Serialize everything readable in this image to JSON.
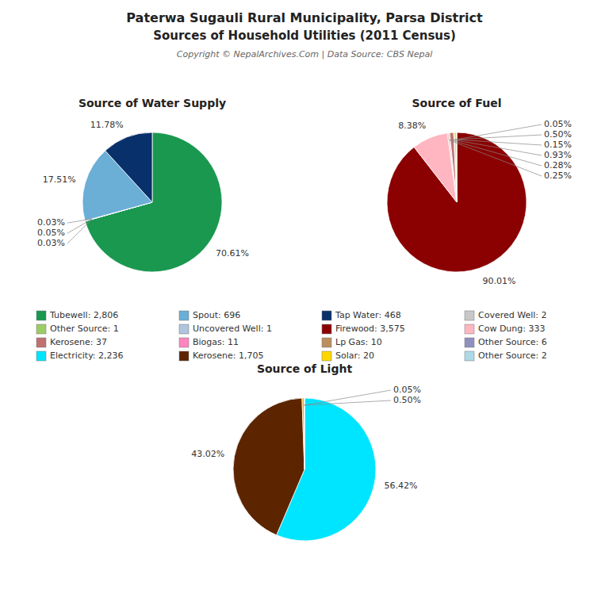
{
  "chart_data": {
    "title": "Paterwa Sugauli Rural Municipality, Parsa District",
    "subtitle": "Sources of Household Utilities (2011 Census)",
    "annotations": [
      "Copyright © NepalArchives.Com | Data Source: CBS Nepal"
    ],
    "charts": [
      {
        "type": "pie",
        "title": "Source of Water Supply",
        "values": [
          70.61,
          0.03,
          0.05,
          0.03,
          17.51,
          11.78
        ],
        "value_labels": [
          "70.61%",
          "0.03%",
          "0.05%",
          "0.03%",
          "17.51%",
          "11.78%"
        ],
        "colors": [
          "#1a9850",
          "#9ccc65",
          "#c8c8c8",
          "#b0c4de",
          "#6baed6",
          "#08306b"
        ],
        "data_labels": true
      },
      {
        "type": "pie",
        "title": "Source of Fuel",
        "values": [
          90.01,
          8.38,
          0.25,
          0.28,
          0.93,
          0.15,
          0.5,
          0.05
        ],
        "value_labels": [
          "90.01%",
          "8.38%",
          "0.25%",
          "0.28%",
          "0.93%",
          "0.15%",
          "0.50%",
          "0.05%"
        ],
        "colors": [
          "#8b0000",
          "#ffb6c1",
          "#bc8f5f",
          "#ff85c0",
          "#c07070",
          "#9090c0",
          "#ffd700",
          "#add8e6"
        ],
        "data_labels": true
      },
      {
        "type": "pie",
        "title": "Source of Light",
        "values": [
          56.42,
          43.02,
          0.5,
          0.05
        ],
        "value_labels": [
          "56.42%",
          "43.02%",
          "0.50%",
          "0.05%"
        ],
        "colors": [
          "#00e5ff",
          "#5c2500",
          "#ffa500",
          "#ffd700"
        ],
        "data_labels": true
      }
    ],
    "legend_entries": {
      "categories": [
        "Tubewell: 2,806",
        "Other Source: 1",
        "Kerosene: 37",
        "Electricity: 2,236",
        "Spout: 696",
        "Uncovered Well: 1",
        "Biogas: 11",
        "Kerosene: 1,705",
        "Tap Water: 468",
        "Firewood: 3,575",
        "Lp Gas: 10",
        "Solar: 20",
        "Covered Well: 2",
        "Cow Dung: 333",
        "Other Source: 6",
        "Other Source: 2"
      ],
      "colors": [
        "#1a9850",
        "#9ccc65",
        "#c07070",
        "#00e5ff",
        "#6baed6",
        "#b0c4de",
        "#ff85c0",
        "#5c2500",
        "#08306b",
        "#8b0000",
        "#bc8f5f",
        "#ffd700",
        "#c8c8c8",
        "#ffb6c1",
        "#9090c0",
        "#add8e6"
      ]
    }
  }
}
